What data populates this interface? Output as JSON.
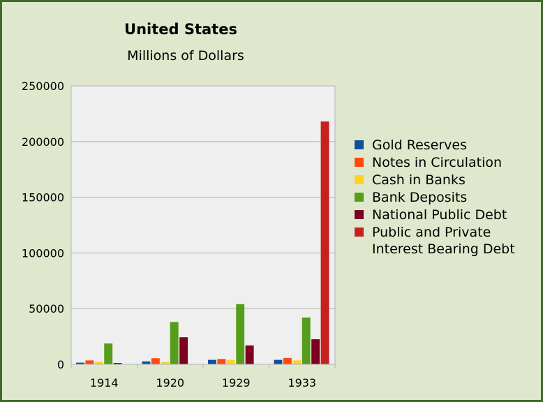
{
  "chart_data": {
    "type": "bar",
    "title": "United States",
    "subtitle": "Millions of Dollars",
    "xlabel": "",
    "ylabel": "",
    "categories": [
      "1914",
      "1920",
      "1929",
      "1933"
    ],
    "ylim": [
      0,
      250000
    ],
    "yticks": [
      "0",
      "50000",
      "100000",
      "150000",
      "200000",
      "250000"
    ],
    "ytick_values": [
      0,
      50000,
      100000,
      150000,
      200000,
      250000
    ],
    "grid": true,
    "legend_position": "right",
    "series": [
      {
        "name": "Gold Reserves",
        "color": "#0d4f9b",
        "values": [
          1500,
          2600,
          4000,
          4000
        ]
      },
      {
        "name": "Notes in Circulation",
        "color": "#ff4a0f",
        "values": [
          3500,
          5500,
          4800,
          5700
        ]
      },
      {
        "name": "Cash in Banks",
        "color": "#ffd320",
        "values": [
          2200,
          2000,
          4000,
          3500
        ]
      },
      {
        "name": "Bank Deposits",
        "color": "#579d1c",
        "values": [
          18700,
          38000,
          54000,
          42000
        ]
      },
      {
        "name": "National Public Debt",
        "color": "#7e0021",
        "values": [
          1200,
          24300,
          16900,
          22500
        ]
      },
      {
        "name": "Public and Private Interest Bearing Debt",
        "color": "#c5221f",
        "values": [
          0,
          0,
          0,
          218000
        ]
      }
    ]
  }
}
